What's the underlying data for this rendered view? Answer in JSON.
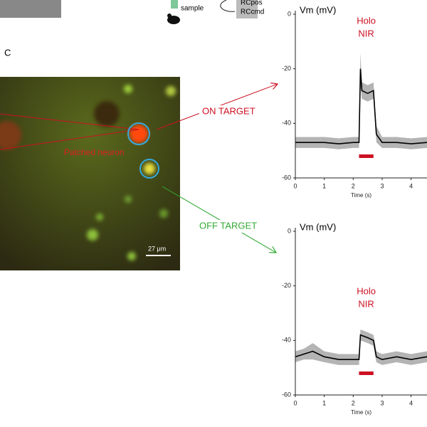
{
  "panel_label": "C",
  "top": {
    "sample": "sample",
    "rc_pos": "RCpos",
    "rc_cmd": "RCcmd"
  },
  "image": {
    "patched_label": "Patched neuron",
    "scale_bar": "27 μm"
  },
  "annotations": {
    "on_target": "ON TARGET",
    "off_target": "OFF TARGET"
  },
  "chart_data": [
    {
      "type": "line",
      "ylabel": "Vm (mV)",
      "xlabel": "Time (s)",
      "annotation": [
        "Holo",
        "NIR"
      ],
      "x": [
        0,
        0.5,
        1,
        1.5,
        2,
        2.2,
        2.25,
        2.3,
        2.5,
        2.7,
        2.8,
        3,
        3.5,
        4,
        4.55
      ],
      "values": [
        -47,
        -47,
        -47,
        -47.5,
        -47,
        -47,
        -20,
        -28,
        -29,
        -28,
        -44,
        -47,
        -47,
        -47.5,
        -47
      ],
      "error": [
        2,
        2,
        2,
        2,
        2,
        2,
        6,
        3,
        3,
        3,
        3,
        2,
        2,
        2,
        2
      ],
      "color": "#000000",
      "band_color": "#b4b4b4",
      "stim": [
        2.2,
        2.7
      ],
      "stim_color": "#cc1122",
      "xlim": [
        0,
        4.55
      ],
      "ylim": [
        -60,
        0
      ],
      "xticks": [
        0,
        1,
        2,
        3,
        4
      ],
      "yticks": [
        0,
        -20,
        -40,
        -60
      ]
    },
    {
      "type": "line",
      "ylabel": "Vm (mV)",
      "xlabel": "Time (s)",
      "annotation": [
        "Holo",
        "NIR"
      ],
      "x": [
        0,
        0.3,
        0.6,
        1,
        1.5,
        2,
        2.2,
        2.25,
        2.5,
        2.7,
        2.8,
        3,
        3.5,
        4,
        4.55
      ],
      "values": [
        -46,
        -45,
        -44,
        -46,
        -47,
        -47,
        -47,
        -38,
        -39,
        -40,
        -46,
        -47,
        -46,
        -47,
        -46
      ],
      "error": [
        2,
        2,
        3,
        2,
        2,
        2,
        2,
        2,
        2,
        2,
        2,
        2,
        2,
        2,
        2
      ],
      "color": "#000000",
      "band_color": "#b4b4b4",
      "stim": [
        2.2,
        2.7
      ],
      "stim_color": "#cc1122",
      "xlim": [
        0,
        4.55
      ],
      "ylim": [
        -60,
        0
      ],
      "xticks": [
        0,
        1,
        2,
        3,
        4
      ],
      "yticks": [
        0,
        -20,
        -40,
        -60
      ]
    }
  ]
}
